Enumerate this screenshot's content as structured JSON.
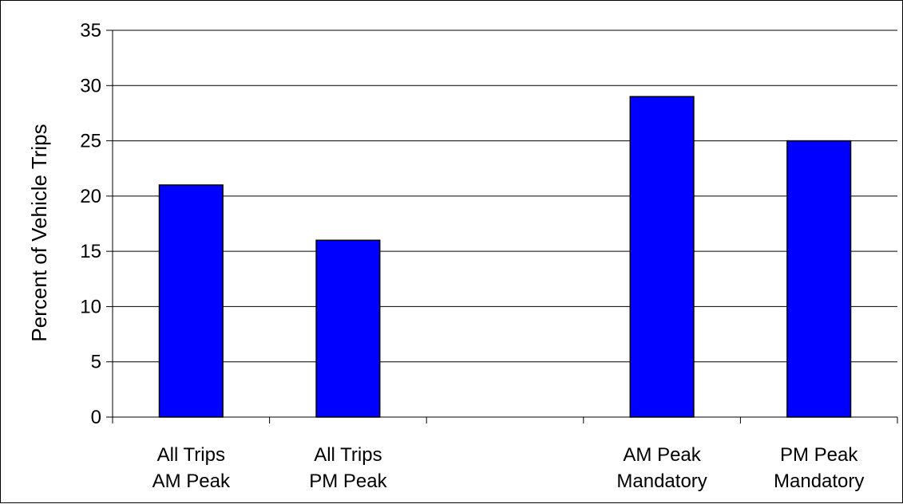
{
  "chart_data": {
    "type": "bar",
    "title": "",
    "xlabel": "",
    "ylabel": "Percent of Vehicle Trips",
    "ylim": [
      0,
      35
    ],
    "yticks": [
      0,
      5,
      10,
      15,
      20,
      25,
      30,
      35
    ],
    "grid": true,
    "legend": "none",
    "bar_color": "#0000ff",
    "categories": [
      [
        "All Trips",
        "AM Peak"
      ],
      [
        "All Trips",
        "PM Peak"
      ],
      [
        "",
        ""
      ],
      [
        "AM Peak",
        "Mandatory"
      ],
      [
        "PM Peak",
        "Mandatory"
      ]
    ],
    "values": [
      21,
      16,
      null,
      29,
      25
    ]
  }
}
